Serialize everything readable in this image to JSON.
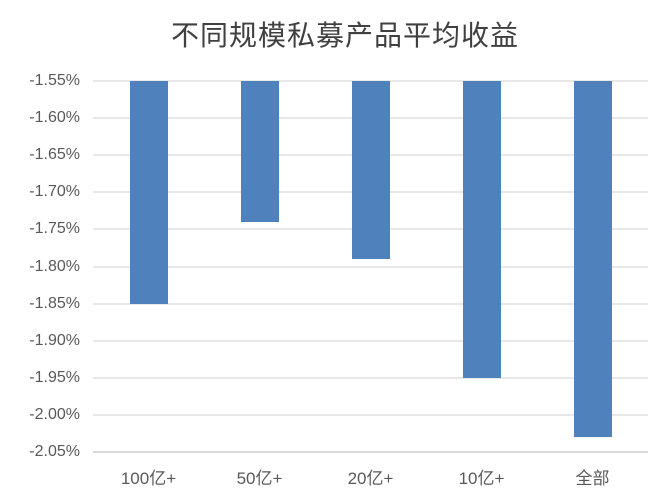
{
  "chart_data": {
    "type": "bar",
    "title": "不同规模私募产品平均收益",
    "categories": [
      "100亿+",
      "50亿+",
      "20亿+",
      "10亿+",
      "全部"
    ],
    "values": [
      -1.85,
      -1.74,
      -1.79,
      -1.95,
      -2.03
    ],
    "value_unit": "%",
    "xlabel": "",
    "ylabel": "",
    "ylim": [
      -2.05,
      -1.55
    ],
    "y_tick_step": 0.05,
    "y_tick_labels": [
      "-1.55%",
      "-1.60%",
      "-1.65%",
      "-1.70%",
      "-1.75%",
      "-1.80%",
      "-1.85%",
      "-1.90%",
      "-1.95%",
      "-2.00%",
      "-2.05%"
    ],
    "grid": true,
    "legend_position": "none",
    "bars_hang_from_top": true,
    "colors": {
      "bar_fill": "#4F81BD",
      "gridline": "#E8E8E8",
      "bottom_axis_line": "#D9D9D9",
      "axis_label": "#595959",
      "title": "#404040",
      "background": "#FFFFFF"
    }
  }
}
